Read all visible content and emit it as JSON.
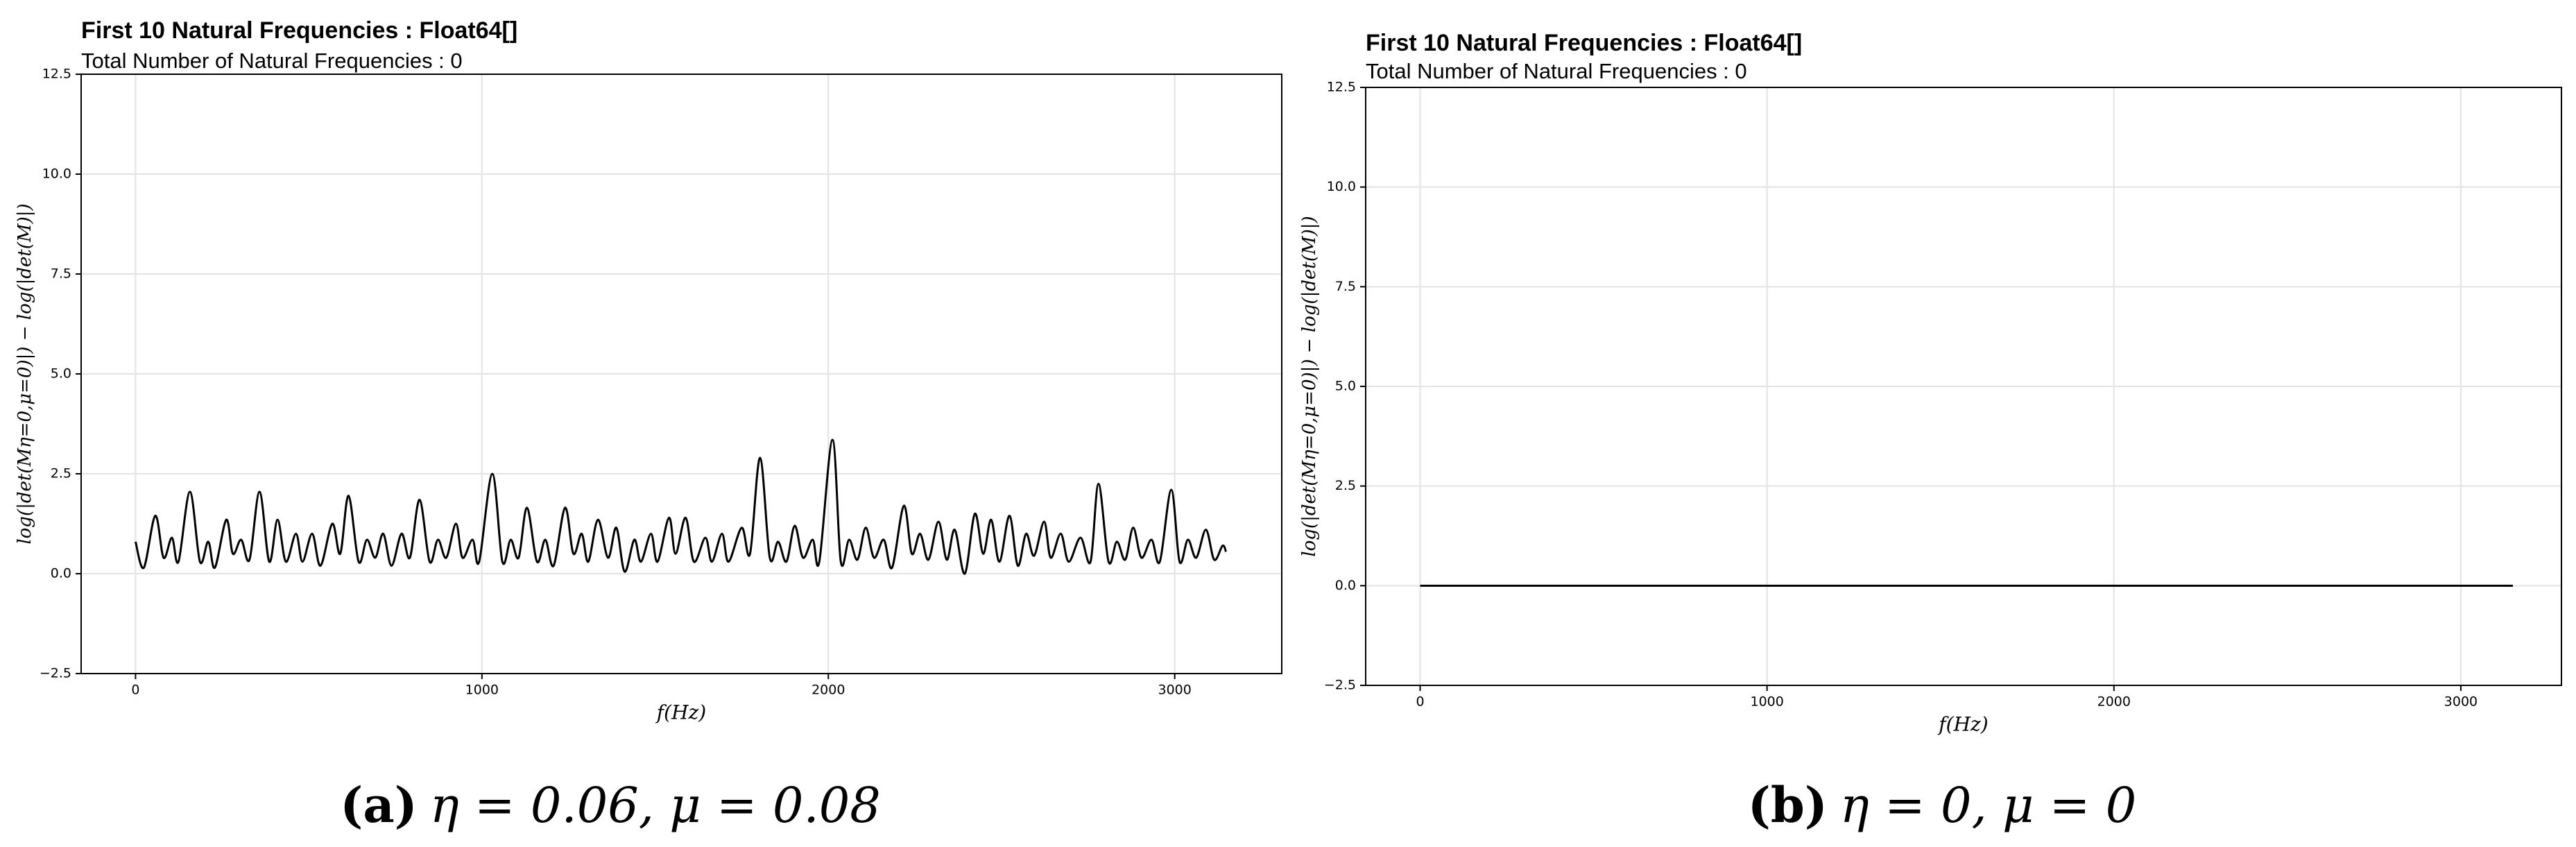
{
  "chart_data": [
    {
      "type": "line",
      "title": "First 10 Natural Frequencies : Float64[]",
      "subtitle": "Total Number of Natural Frequencies : 0",
      "xlabel": "f(Hz)",
      "ylabel": "log(|det(Mη=0,μ=0)|) − log(|det(M)|)",
      "xlim": [
        -157,
        3309
      ],
      "ylim": [
        -2.5,
        12.5
      ],
      "xticks": [
        0,
        1000,
        2000,
        3000
      ],
      "yticks": [
        {
          "value": -2.5,
          "label": "−2.5"
        },
        {
          "value": 0,
          "label": "0.0"
        },
        2.5,
        {
          "value": 5,
          "label": "5.0"
        },
        7.5,
        {
          "value": 10,
          "label": "10.0"
        },
        12.5
      ],
      "grid": true,
      "series": [
        {
          "color": "#000000",
          "x": [
            0,
            24,
            57,
            81,
            105,
            124,
            157,
            186,
            210,
            229,
            262,
            281,
            305,
            329,
            358,
            386,
            410,
            434,
            463,
            482,
            510,
            534,
            568,
            591,
            615,
            644,
            668,
            692,
            715,
            739,
            768,
            792,
            820,
            849,
            873,
            897,
            925,
            944,
            973,
            992,
            1030,
            1059,
            1083,
            1106,
            1130,
            1159,
            1183,
            1207,
            1240,
            1264,
            1288,
            1307,
            1335,
            1364,
            1388,
            1412,
            1440,
            1459,
            1488,
            1507,
            1540,
            1559,
            1588,
            1612,
            1645,
            1664,
            1693,
            1712,
            1750,
            1774,
            1803,
            1831,
            1855,
            1879,
            1903,
            1927,
            1955,
            1974,
            2012,
            2036,
            2060,
            2084,
            2108,
            2132,
            2160,
            2184,
            2218,
            2241,
            2265,
            2289,
            2318,
            2342,
            2365,
            2394,
            2423,
            2447,
            2470,
            2494,
            2523,
            2547,
            2571,
            2594,
            2623,
            2642,
            2671,
            2694,
            2728,
            2757,
            2780,
            2809,
            2833,
            2857,
            2880,
            2904,
            2933,
            2957,
            2990,
            3014,
            3038,
            3062,
            3090,
            3114,
            3138,
            3148
          ],
          "values": [
            0.8,
            0.15,
            1.45,
            0.4,
            0.9,
            0.3,
            2.05,
            0.3,
            0.8,
            0.15,
            1.35,
            0.5,
            0.85,
            0.35,
            2.05,
            0.3,
            1.35,
            0.3,
            1.0,
            0.3,
            1.0,
            0.2,
            1.25,
            0.5,
            1.95,
            0.3,
            0.85,
            0.4,
            1.0,
            0.2,
            1.0,
            0.4,
            1.85,
            0.3,
            0.85,
            0.4,
            1.25,
            0.4,
            0.85,
            0.3,
            2.5,
            0.3,
            0.85,
            0.4,
            1.65,
            0.3,
            0.85,
            0.2,
            1.65,
            0.5,
            1.0,
            0.3,
            1.35,
            0.4,
            1.15,
            0.05,
            0.85,
            0.3,
            1.0,
            0.3,
            1.4,
            0.5,
            1.4,
            0.3,
            0.9,
            0.3,
            1.0,
            0.3,
            1.15,
            0.5,
            2.9,
            0.4,
            0.8,
            0.3,
            1.2,
            0.4,
            0.85,
            0.3,
            3.35,
            0.3,
            0.85,
            0.35,
            1.15,
            0.4,
            0.85,
            0.15,
            1.7,
            0.5,
            1.0,
            0.35,
            1.3,
            0.35,
            1.1,
            0.0,
            1.5,
            0.5,
            1.35,
            0.3,
            1.45,
            0.2,
            1.0,
            0.45,
            1.3,
            0.4,
            1.0,
            0.3,
            0.9,
            0.3,
            2.25,
            0.3,
            0.8,
            0.35,
            1.15,
            0.4,
            0.85,
            0.3,
            2.1,
            0.3,
            0.85,
            0.4,
            1.1,
            0.35,
            0.7,
            0.55
          ]
        }
      ]
    },
    {
      "type": "line",
      "title": "First 10 Natural Frequencies : Float64[]",
      "subtitle": "Total Number of Natural Frequencies : 0",
      "xlabel": "f(Hz)",
      "ylabel": "log(|det(Mη=0,μ=0)|) − log(|det(M)|)",
      "xlim": [
        -157,
        3290
      ],
      "ylim": [
        -2.5,
        12.5
      ],
      "xticks": [
        0,
        1000,
        2000,
        3000
      ],
      "yticks": [
        {
          "value": -2.5,
          "label": "−2.5"
        },
        {
          "value": 0,
          "label": "0.0"
        },
        2.5,
        {
          "value": 5,
          "label": "5.0"
        },
        7.5,
        {
          "value": 10,
          "label": "10.0"
        },
        12.5
      ],
      "grid": true,
      "series": [
        {
          "color": "#000000",
          "x": [
            0,
            3150
          ],
          "values": [
            0,
            0
          ]
        }
      ]
    }
  ],
  "captions": [
    {
      "label": "(a)",
      "text": "η = 0.06, μ = 0.08"
    },
    {
      "label": "(b)",
      "text": "η = 0, μ = 0"
    }
  ]
}
